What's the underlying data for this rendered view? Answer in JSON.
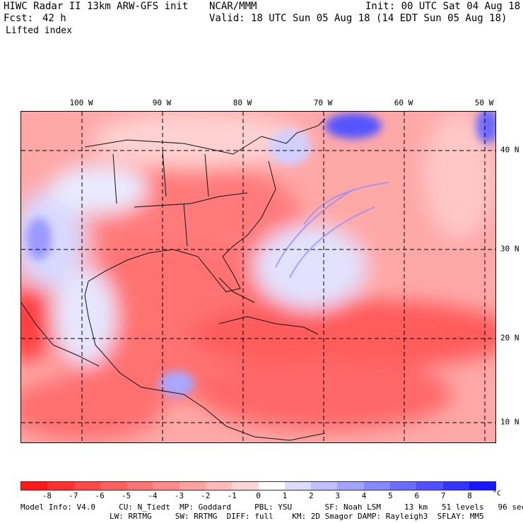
{
  "header": {
    "title": "HIWC Radar II 13km ARW-GFS init",
    "org": "NCAR/MMM",
    "init": "Init: 00 UTC Sat 04 Aug 18",
    "fcst_label": "Fcst:",
    "fcst_value": "42 h",
    "valid": "Valid: 18 UTC Sun 05 Aug 18 (14 EDT Sun 05 Aug 18)",
    "field": "Lifted index"
  },
  "map": {
    "lon_labels": [
      "100 W",
      "90 W",
      "80 W",
      "70 W",
      "60 W",
      "50 W"
    ],
    "lat_labels": [
      "40 N",
      "30 N",
      "20 N",
      "10 N"
    ]
  },
  "colorbar": {
    "ticks": [
      "-8",
      "-7",
      "-6",
      "-5",
      "-4",
      "-3",
      "-2",
      "-1",
      "0",
      "1",
      "2",
      "3",
      "4",
      "5",
      "6",
      "7",
      "8"
    ],
    "unit": "°C",
    "colors": [
      "#ff1a1a",
      "#ff3131",
      "#ff4a4a",
      "#ff6060",
      "#ff7575",
      "#ff8b8b",
      "#ffa2a2",
      "#ffbaba",
      "#ffd5d5",
      "#ffffff",
      "#dcdcff",
      "#c0c0ff",
      "#a4a4ff",
      "#8888ff",
      "#6c6cff",
      "#5050ff",
      "#3434ff",
      "#1818ff"
    ]
  },
  "footer": {
    "line1": "Model Info: V4.0     CU: N_Tiedt  MP: Goddard     PBL: YSU       SF: Noah LSM     13 km   51 levels   96 sec",
    "line2": "LW: RRTMG     SW: RRTMG  DIFF: full    KM: 2D Smagor DAMP: Rayleigh3  SFLAY: MM5"
  }
}
